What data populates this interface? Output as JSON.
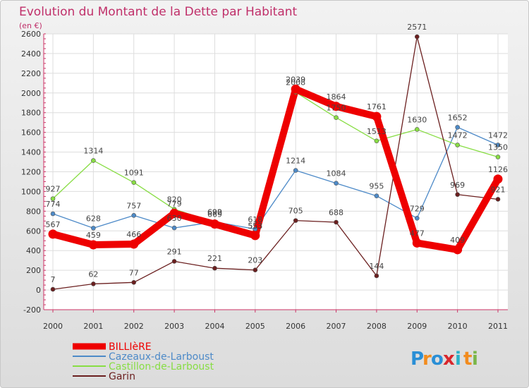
{
  "chart_data": {
    "type": "line",
    "title": "Evolution du Montant de la Dette par Habitant",
    "subtitle": "(en €)",
    "categories": [
      "2000",
      "2001",
      "2002",
      "2003",
      "2004",
      "2005",
      "2006",
      "2007",
      "2008",
      "2009",
      "2010",
      "2011"
    ],
    "ylim": [
      -200,
      2600
    ],
    "yticks": [
      -200,
      0,
      200,
      400,
      600,
      800,
      1000,
      1200,
      1400,
      1600,
      1800,
      2000,
      2200,
      2400,
      2600
    ],
    "grid": true,
    "legend_position": "bottom-left",
    "series": [
      {
        "name": "BILLIèRE",
        "color": "#ee0000",
        "values": [
          567,
          459,
          466,
          779,
          669,
          553,
          2039,
          1864,
          1761,
          477,
          409,
          1126
        ]
      },
      {
        "name": "Cazeaux-de-Larboust",
        "color": "#4d8ac8",
        "values": [
          774,
          628,
          757,
          630,
          692,
          618,
          1214,
          1084,
          955,
          729,
          1652,
          1472
        ]
      },
      {
        "name": "Castillon-de-Larboust",
        "color": "#88dd44",
        "values": [
          927,
          1314,
          1091,
          820,
          690,
          553,
          2008,
          1750,
          1513,
          1630,
          1472,
          1350
        ]
      },
      {
        "name": "Garin",
        "color": "#6b1f1f",
        "values": [
          7,
          62,
          77,
          291,
          221,
          203,
          705,
          688,
          144,
          2571,
          969,
          921
        ]
      }
    ]
  },
  "logo": {
    "letters": [
      "P",
      "r",
      "o",
      "x",
      "i",
      "t",
      "i"
    ],
    "colors": [
      "#2a8fd6",
      "#f28c1e",
      "#2a8fd6",
      "#d8262c",
      "#2ab0c8",
      "#f28c1e",
      "#7ab648"
    ]
  }
}
